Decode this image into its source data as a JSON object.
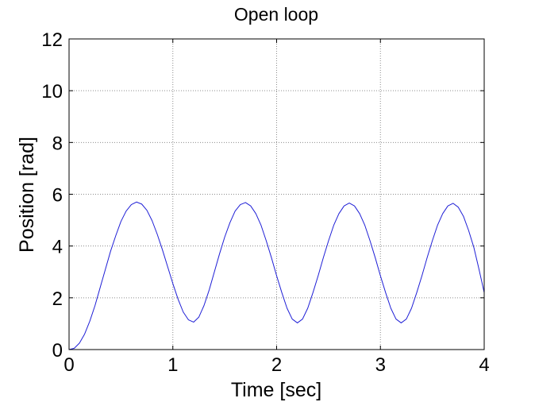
{
  "chart_data": {
    "type": "line",
    "title": "Open loop",
    "xlabel": "Time [sec]",
    "ylabel": "Position [rad]",
    "xlim": [
      0,
      4
    ],
    "ylim": [
      0,
      12
    ],
    "xticks": [
      "0",
      "1",
      "2",
      "3",
      "4"
    ],
    "yticks": [
      "0",
      "2",
      "4",
      "6",
      "8",
      "10",
      "12"
    ],
    "grid": true,
    "legend": "none",
    "series": [
      {
        "color": "#1f1fd6",
        "x": [
          0,
          0.05,
          0.1,
          0.15,
          0.2,
          0.25,
          0.3,
          0.35,
          0.4,
          0.45,
          0.5,
          0.55,
          0.6,
          0.65,
          0.7,
          0.75,
          0.8,
          0.85,
          0.9,
          0.95,
          1.0,
          1.05,
          1.1,
          1.15,
          1.2,
          1.25,
          1.3,
          1.35,
          1.4,
          1.45,
          1.5,
          1.55,
          1.6,
          1.65,
          1.7,
          1.75,
          1.8,
          1.85,
          1.9,
          1.95,
          2.0,
          2.05,
          2.1,
          2.15,
          2.2,
          2.25,
          2.3,
          2.35,
          2.4,
          2.45,
          2.5,
          2.55,
          2.6,
          2.65,
          2.7,
          2.75,
          2.8,
          2.85,
          2.9,
          2.95,
          3.0,
          3.05,
          3.1,
          3.15,
          3.2,
          3.25,
          3.3,
          3.35,
          3.4,
          3.45,
          3.5,
          3.55,
          3.6,
          3.65,
          3.7,
          3.75,
          3.8,
          3.85,
          3.9,
          3.95,
          4.0
        ],
        "y": [
          0,
          0.05,
          0.25,
          0.6,
          1.1,
          1.7,
          2.4,
          3.1,
          3.8,
          4.4,
          4.95,
          5.35,
          5.6,
          5.7,
          5.62,
          5.38,
          4.98,
          4.45,
          3.85,
          3.2,
          2.55,
          1.95,
          1.45,
          1.15,
          1.06,
          1.25,
          1.7,
          2.3,
          3.0,
          3.7,
          4.35,
          4.9,
          5.35,
          5.6,
          5.68,
          5.55,
          5.25,
          4.8,
          4.2,
          3.55,
          2.85,
          2.2,
          1.6,
          1.18,
          1.03,
          1.18,
          1.6,
          2.2,
          2.85,
          3.55,
          4.2,
          4.8,
          5.25,
          5.55,
          5.66,
          5.55,
          5.25,
          4.8,
          4.2,
          3.55,
          2.85,
          2.2,
          1.6,
          1.18,
          1.03,
          1.18,
          1.6,
          2.2,
          2.85,
          3.55,
          4.2,
          4.8,
          5.25,
          5.55,
          5.65,
          5.5,
          5.15,
          4.6,
          3.95,
          3.1,
          2.2
        ]
      }
    ]
  }
}
